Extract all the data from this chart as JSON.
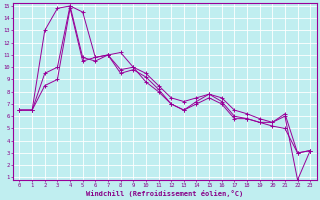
{
  "bg_color": "#c0eef0",
  "line_color": "#990099",
  "grid_color": "#aadddd",
  "xlabel": "Windchill (Refroidissement éolien,°C)",
  "xlabel_color": "#880088",
  "tick_color": "#880088",
  "xlim": [
    -0.5,
    23.5
  ],
  "ylim": [
    1,
    15
  ],
  "xticks": [
    0,
    1,
    2,
    3,
    4,
    5,
    6,
    7,
    8,
    9,
    10,
    11,
    12,
    13,
    14,
    15,
    16,
    17,
    18,
    19,
    20,
    21,
    22,
    23
  ],
  "yticks": [
    1,
    2,
    3,
    4,
    5,
    6,
    7,
    8,
    9,
    10,
    11,
    12,
    13,
    14,
    15
  ],
  "series": [
    [
      6.5,
      6.5,
      13.0,
      14.8,
      15.0,
      10.8,
      10.5,
      11.0,
      11.2,
      10.0,
      9.5,
      8.5,
      7.5,
      7.2,
      7.5,
      7.8,
      7.5,
      6.5,
      6.2,
      5.8,
      5.5,
      6.2,
      3.0,
      3.2
    ],
    [
      6.5,
      6.5,
      9.5,
      10.0,
      15.0,
      14.5,
      10.8,
      11.0,
      9.8,
      10.0,
      8.8,
      8.0,
      7.0,
      6.5,
      7.2,
      7.8,
      7.2,
      6.0,
      5.8,
      5.5,
      5.5,
      6.0,
      0.8,
      3.2
    ],
    [
      6.5,
      6.5,
      8.5,
      9.0,
      14.8,
      10.5,
      10.8,
      11.0,
      9.5,
      9.8,
      9.2,
      8.2,
      7.0,
      6.5,
      7.0,
      7.5,
      7.0,
      5.8,
      5.8,
      5.5,
      5.2,
      5.0,
      3.0,
      3.2
    ]
  ]
}
